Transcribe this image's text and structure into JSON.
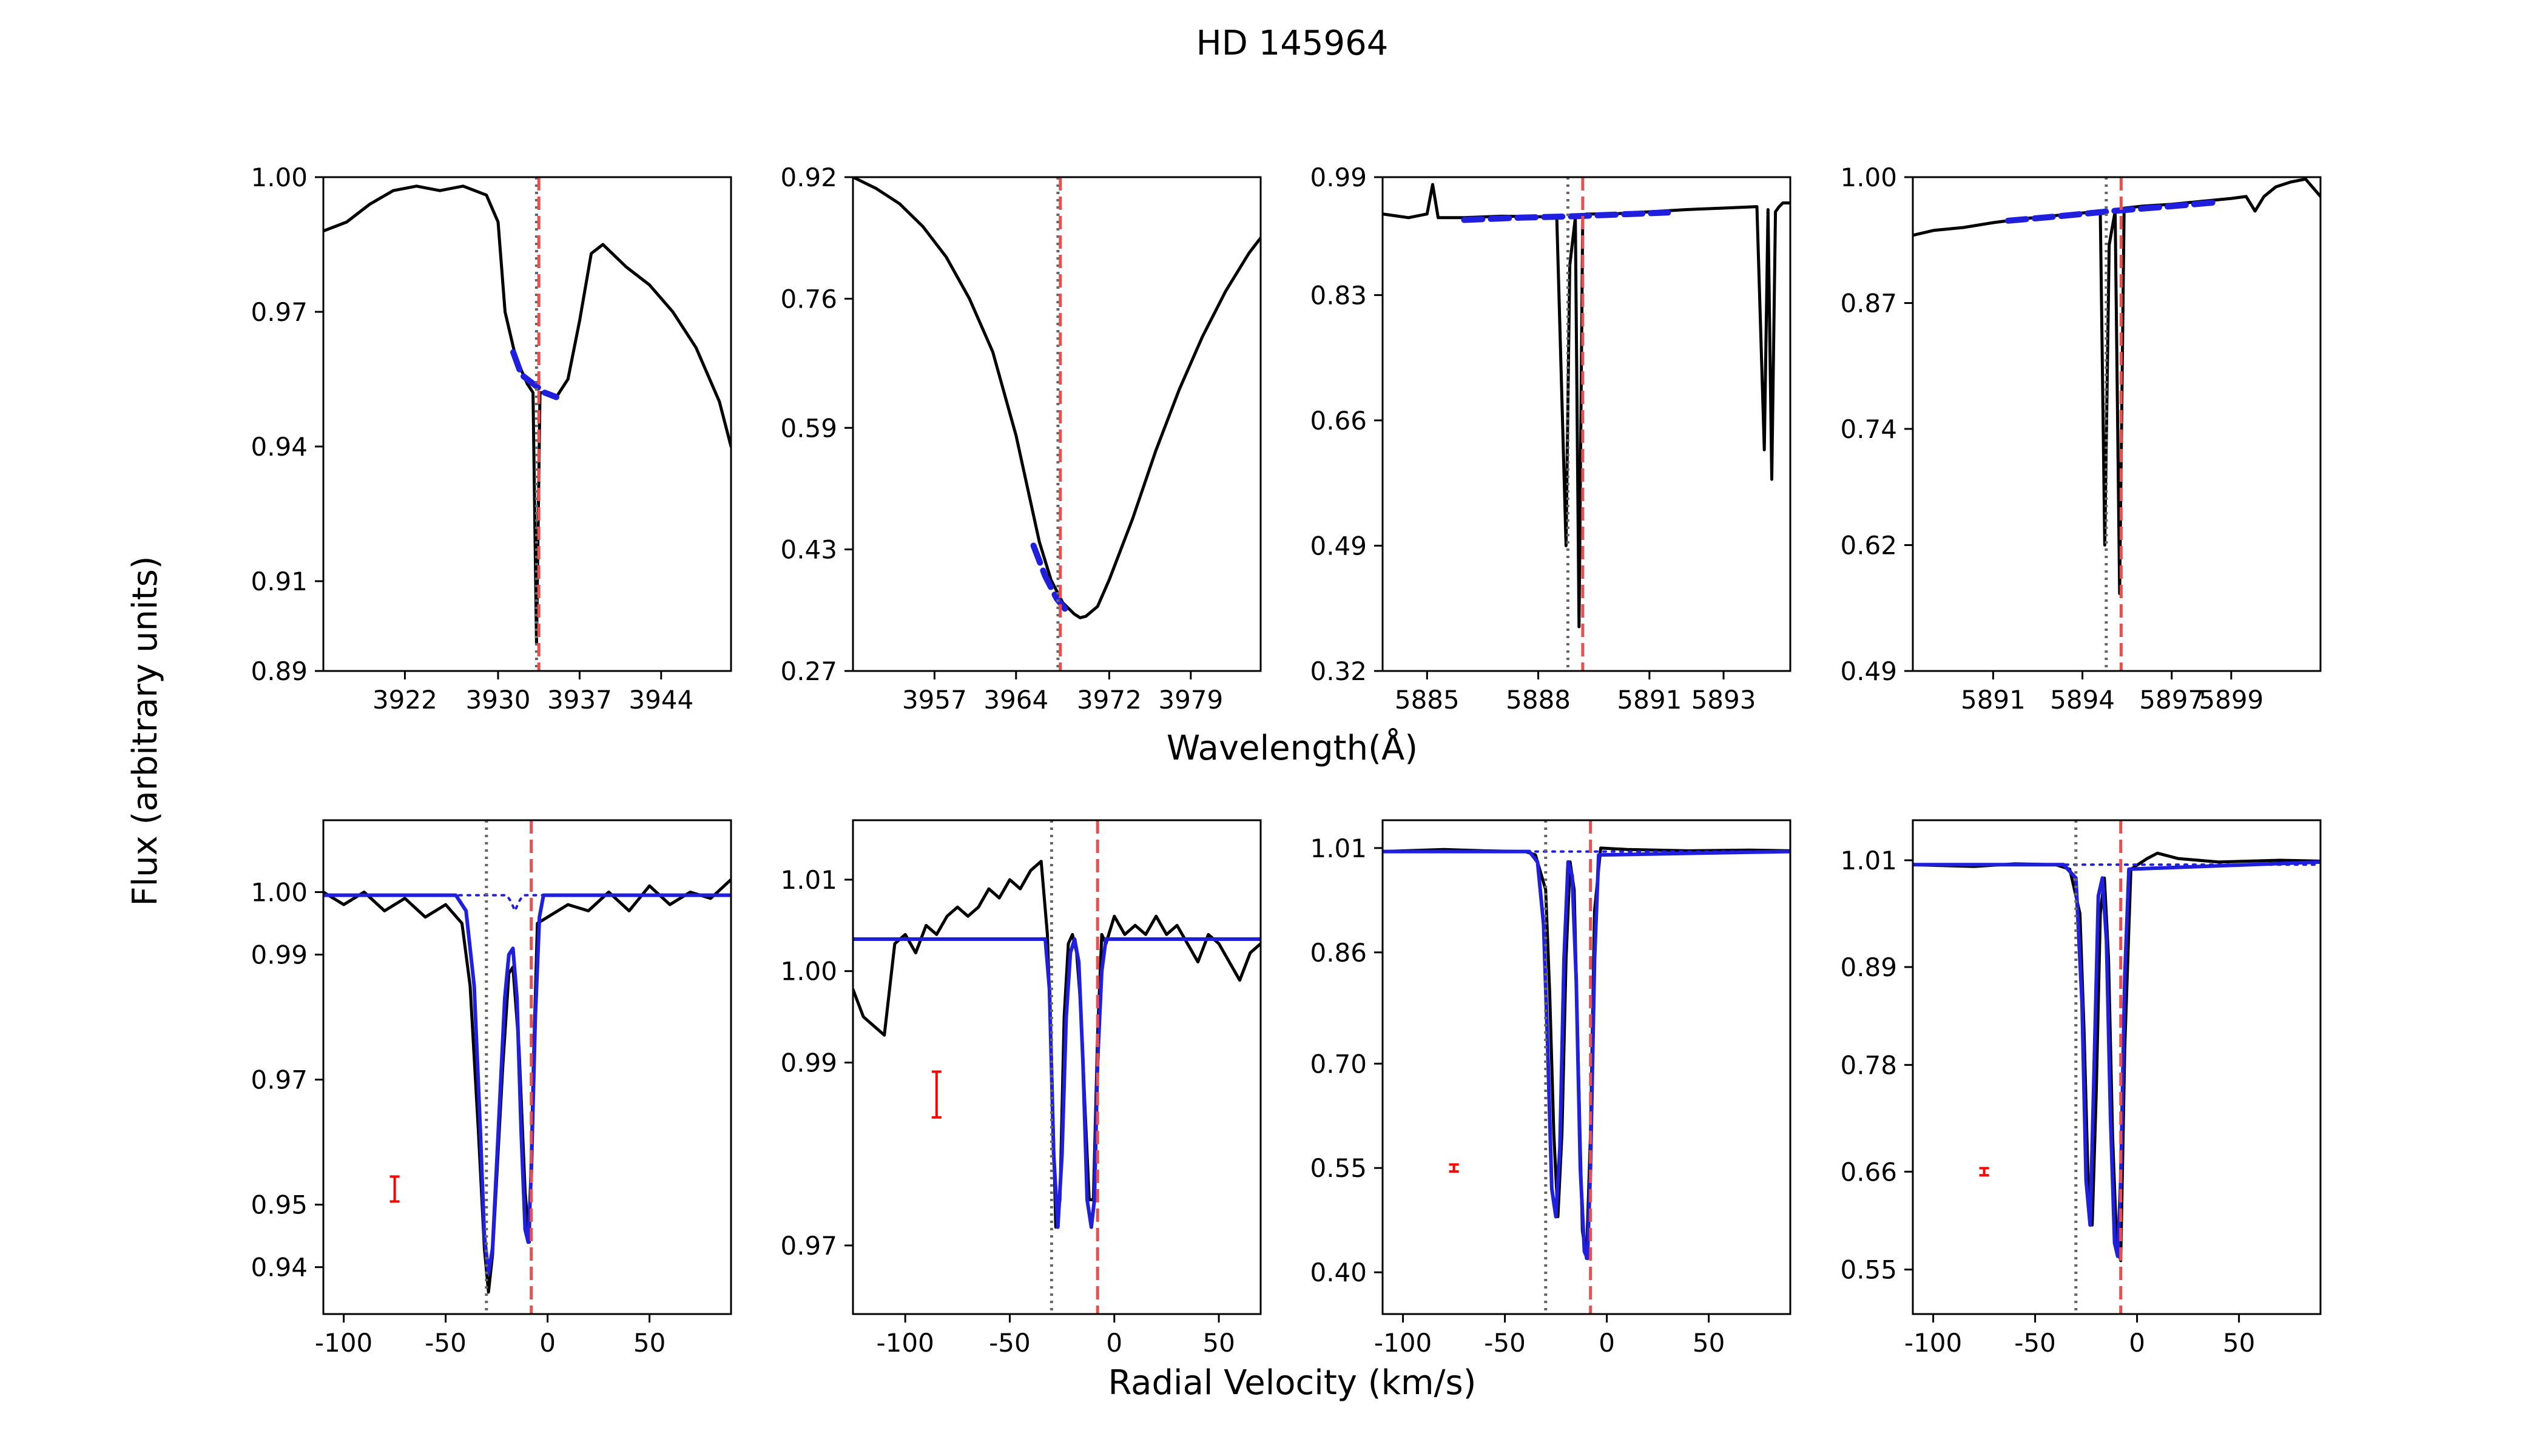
{
  "figure": {
    "title": "HD 145964",
    "ylabel": "Flux (arbitrary units)",
    "top_xlabel": "Wavelength(Å)",
    "bottom_xlabel": "Radial Velocity (km/s)"
  },
  "colors": {
    "spectrum": "#000000",
    "fit": "#1f1fdd",
    "marker_red": "#e8504f",
    "marker_gray": "#666666",
    "errorbar": "#ff0000"
  },
  "chart_data": [
    {
      "type": "line",
      "row": "top",
      "title": "",
      "xlabel": "",
      "ylabel": "",
      "xlim": [
        3915,
        3950
      ],
      "ylim": [
        0.89,
        1.0
      ],
      "xticks": [
        3922,
        3930,
        3937,
        3944
      ],
      "xtick_labels": [
        "3922",
        "3930",
        "3937",
        "3944"
      ],
      "yticks": [
        0.89,
        0.91,
        0.94,
        0.97,
        1.0
      ],
      "ytick_labels": [
        "0.89",
        "0.91",
        "0.94",
        "0.97",
        "1.00"
      ],
      "vlines": [
        {
          "x": 3933.3,
          "style": "gray-dotted"
        },
        {
          "x": 3933.5,
          "style": "red-dashed"
        }
      ],
      "spectrum": {
        "x": [
          3915,
          3917,
          3919,
          3921,
          3923,
          3925,
          3927,
          3929,
          3930,
          3930.6,
          3931.5,
          3932.5,
          3933.0,
          3933.3,
          3933.6,
          3934.0,
          3935.0,
          3936.0,
          3937.0,
          3938.0,
          3939.0,
          3941.0,
          3943.0,
          3945.0,
          3947.0,
          3949.0,
          3950
        ],
        "y": [
          0.988,
          0.99,
          0.994,
          0.997,
          0.998,
          0.997,
          0.998,
          0.996,
          0.99,
          0.97,
          0.96,
          0.954,
          0.952,
          0.896,
          0.952,
          0.952,
          0.951,
          0.955,
          0.968,
          0.983,
          0.985,
          0.98,
          0.976,
          0.97,
          0.962,
          0.95,
          0.94
        ]
      },
      "fit": {
        "x": [
          3931.3,
          3932.0,
          3933.0,
          3934.0,
          3935.0
        ],
        "y": [
          0.961,
          0.956,
          0.954,
          0.952,
          0.951
        ]
      }
    },
    {
      "type": "line",
      "row": "top",
      "title": "",
      "xlabel": "",
      "ylabel": "",
      "xlim": [
        3950,
        3985
      ],
      "ylim": [
        0.27,
        0.92
      ],
      "xticks": [
        3957,
        3964,
        3972,
        3979
      ],
      "xtick_labels": [
        "3957",
        "3964",
        "3972",
        "3979"
      ],
      "yticks": [
        0.27,
        0.43,
        0.59,
        0.76,
        0.92
      ],
      "ytick_labels": [
        "0.27",
        "0.43",
        "0.59",
        "0.76",
        "0.92"
      ],
      "vlines": [
        {
          "x": 3967.6,
          "style": "gray-dotted"
        },
        {
          "x": 3967.8,
          "style": "red-dashed"
        }
      ],
      "spectrum": {
        "x": [
          3950,
          3952,
          3954,
          3956,
          3958,
          3960,
          3962,
          3964,
          3966,
          3967,
          3968,
          3969,
          3969.5,
          3970,
          3971,
          3972,
          3974,
          3976,
          3978,
          3980,
          3982,
          3984,
          3985
        ],
        "y": [
          0.92,
          0.905,
          0.885,
          0.855,
          0.815,
          0.76,
          0.69,
          0.58,
          0.44,
          0.39,
          0.36,
          0.345,
          0.34,
          0.342,
          0.355,
          0.39,
          0.47,
          0.56,
          0.64,
          0.71,
          0.77,
          0.82,
          0.84
        ]
      },
      "fit": {
        "x": [
          3965.5,
          3966.5,
          3967.5,
          3968.2
        ],
        "y": [
          0.435,
          0.395,
          0.365,
          0.352
        ]
      }
    },
    {
      "type": "line",
      "row": "top",
      "title": "",
      "xlabel": "",
      "ylabel": "",
      "xlim": [
        5883.8,
        5894.8
      ],
      "ylim": [
        0.32,
        0.99
      ],
      "xticks": [
        5885,
        5888,
        5891,
        5893
      ],
      "xtick_labels": [
        "5885",
        "5888",
        "5891",
        "5893"
      ],
      "yticks": [
        0.32,
        0.49,
        0.66,
        0.83,
        0.99
      ],
      "ytick_labels": [
        "0.32",
        "0.49",
        "0.66",
        "0.83",
        "0.99"
      ],
      "vlines": [
        {
          "x": 5888.8,
          "style": "gray-dotted"
        },
        {
          "x": 5889.2,
          "style": "red-dashed"
        }
      ],
      "spectrum": {
        "x": [
          5883.8,
          5884.5,
          5885.0,
          5885.15,
          5885.3,
          5886.0,
          5887.0,
          5888.5,
          5888.75,
          5888.85,
          5889.0,
          5889.1,
          5889.2,
          5889.3,
          5890.0,
          5891.0,
          5892.0,
          5893.0,
          5893.9,
          5894.1,
          5894.2,
          5894.3,
          5894.4,
          5894.5,
          5894.6,
          5894.7,
          5894.8
        ],
        "y": [
          0.94,
          0.935,
          0.94,
          0.98,
          0.935,
          0.935,
          0.937,
          0.936,
          0.49,
          0.87,
          0.935,
          0.38,
          0.935,
          0.94,
          0.94,
          0.943,
          0.946,
          0.948,
          0.95,
          0.62,
          0.946,
          0.58,
          0.943,
          0.95,
          0.955,
          0.955,
          0.955
        ]
      },
      "fit": {
        "x": [
          5886.0,
          5887.5,
          5889.0,
          5890.5,
          5891.5
        ],
        "y": [
          0.932,
          0.935,
          0.937,
          0.94,
          0.942
        ]
      }
    },
    {
      "type": "line",
      "row": "top",
      "title": "",
      "xlabel": "",
      "ylabel": "",
      "xlim": [
        5888.3,
        5902
      ],
      "ylim": [
        0.49,
        1.0
      ],
      "xticks": [
        5891,
        5894,
        5897,
        5899
      ],
      "xtick_labels": [
        "5891",
        "5894",
        "5897",
        "5899"
      ],
      "yticks": [
        0.49,
        0.62,
        0.74,
        0.87,
        1.0
      ],
      "ytick_labels": [
        "0.49",
        "0.62",
        "0.74",
        "0.87",
        "1.00"
      ],
      "vlines": [
        {
          "x": 5894.8,
          "style": "gray-dotted"
        },
        {
          "x": 5895.3,
          "style": "red-dashed"
        }
      ],
      "spectrum": {
        "x": [
          5888.3,
          5889.0,
          5890.0,
          5891.0,
          5892.0,
          5893.0,
          5894.0,
          5894.6,
          5894.75,
          5894.9,
          5895.1,
          5895.25,
          5895.4,
          5896.0,
          5897.0,
          5898.0,
          5899.0,
          5899.5,
          5899.8,
          5900.1,
          5900.5,
          5901.0,
          5901.5,
          5902
        ],
        "y": [
          0.94,
          0.945,
          0.948,
          0.953,
          0.957,
          0.96,
          0.963,
          0.965,
          0.62,
          0.93,
          0.965,
          0.57,
          0.968,
          0.97,
          0.972,
          0.975,
          0.978,
          0.98,
          0.965,
          0.98,
          0.99,
          0.995,
          0.998,
          0.98
        ]
      },
      "fit": {
        "x": [
          5891.5,
          5893.0,
          5895.0,
          5897.0,
          5898.5
        ],
        "y": [
          0.955,
          0.959,
          0.965,
          0.97,
          0.974
        ]
      }
    },
    {
      "type": "line",
      "row": "bottom",
      "title": "",
      "xlabel": "",
      "ylabel": "",
      "xlim": [
        -110,
        90
      ],
      "ylim": [
        0.9325,
        1.0115
      ],
      "xticks": [
        -100,
        -50,
        0,
        50
      ],
      "xtick_labels": [
        "-100",
        "-50",
        "0",
        "50"
      ],
      "yticks": [
        0.94,
        0.95,
        0.97,
        0.99,
        1.0
      ],
      "ytick_labels": [
        "0.94",
        "0.95",
        "0.97",
        "0.99",
        "1.00"
      ],
      "vlines": [
        {
          "x": -30,
          "style": "gray-dotted"
        },
        {
          "x": -8,
          "style": "red-dashed"
        }
      ],
      "errorbar": {
        "x": -75,
        "y": 0.9525,
        "err": 0.002
      },
      "spectrum": {
        "x": [
          -110,
          -100,
          -90,
          -80,
          -70,
          -60,
          -50,
          -42,
          -38,
          -34,
          -31,
          -29,
          -27,
          -22,
          -19,
          -17,
          -14,
          -11,
          -9,
          -7,
          -5,
          0,
          10,
          20,
          30,
          40,
          50,
          60,
          70,
          80,
          90
        ],
        "y": [
          1.0,
          0.998,
          1.0,
          0.997,
          0.999,
          0.996,
          0.998,
          0.995,
          0.985,
          0.962,
          0.943,
          0.936,
          0.942,
          0.972,
          0.987,
          0.988,
          0.975,
          0.952,
          0.944,
          0.972,
          0.995,
          0.996,
          0.998,
          0.997,
          1.0,
          0.997,
          1.001,
          0.998,
          1.0,
          0.999,
          1.002
        ]
      },
      "fit": {
        "x": [
          -110,
          -45,
          -40,
          -36,
          -33,
          -31,
          -29,
          -27,
          -24,
          -21,
          -19,
          -17,
          -15,
          -13,
          -11,
          -9.5,
          -8,
          -6,
          -4,
          -2,
          90
        ],
        "y": [
          0.9995,
          0.9995,
          0.997,
          0.985,
          0.962,
          0.945,
          0.939,
          0.943,
          0.963,
          0.983,
          0.99,
          0.991,
          0.983,
          0.962,
          0.946,
          0.944,
          0.955,
          0.98,
          0.996,
          0.9995,
          0.9995
        ]
      },
      "fit_dotted": {
        "x": [
          -110,
          -20,
          -18,
          -16,
          -14,
          -12,
          90
        ],
        "y": [
          0.9995,
          0.9995,
          0.9985,
          0.997,
          0.9985,
          0.9995,
          0.9995
        ]
      }
    },
    {
      "type": "line",
      "row": "bottom",
      "title": "",
      "xlabel": "",
      "ylabel": "",
      "xlim": [
        -125,
        70
      ],
      "ylim": [
        0.9625,
        1.0165
      ],
      "xticks": [
        -100,
        -50,
        0,
        50
      ],
      "xtick_labels": [
        "-100",
        "-50",
        "0",
        "50"
      ],
      "yticks": [
        0.97,
        0.99,
        1.0,
        1.01
      ],
      "ytick_labels": [
        "0.97",
        "0.99",
        "1.00",
        "1.01"
      ],
      "vlines": [
        {
          "x": -30,
          "style": "gray-dotted"
        },
        {
          "x": -8,
          "style": "red-dashed"
        }
      ],
      "errorbar": {
        "x": -85,
        "y": 0.9865,
        "err": 0.0025
      },
      "spectrum": {
        "x": [
          -125,
          -120,
          -115,
          -110,
          -105,
          -100,
          -95,
          -90,
          -85,
          -80,
          -75,
          -70,
          -65,
          -60,
          -55,
          -50,
          -45,
          -40,
          -35,
          -32,
          -30,
          -28,
          -26,
          -24,
          -22,
          -20,
          -18,
          -16,
          -14,
          -12,
          -10,
          -8,
          -6,
          -4,
          0,
          5,
          10,
          15,
          20,
          25,
          30,
          35,
          40,
          45,
          50,
          55,
          60,
          65,
          70
        ],
        "y": [
          0.998,
          0.995,
          0.994,
          0.993,
          1.003,
          1.004,
          1.002,
          1.005,
          1.004,
          1.006,
          1.007,
          1.006,
          1.007,
          1.009,
          1.008,
          1.01,
          1.009,
          1.011,
          1.012,
          1.004,
          0.99,
          0.972,
          0.975,
          0.995,
          1.003,
          1.004,
          1.002,
          0.996,
          0.985,
          0.975,
          0.975,
          0.993,
          1.004,
          1.003,
          1.006,
          1.004,
          1.005,
          1.004,
          1.006,
          1.004,
          1.005,
          1.003,
          1.001,
          1.004,
          1.003,
          1.001,
          0.999,
          1.002,
          1.003
        ]
      },
      "fit": {
        "x": [
          -125,
          -33,
          -31,
          -29,
          -27,
          -25,
          -23,
          -21,
          -19,
          -17,
          -15,
          -13,
          -11,
          -9.5,
          -8,
          -6,
          -4,
          70
        ],
        "y": [
          1.0035,
          1.0035,
          0.998,
          0.98,
          0.972,
          0.98,
          0.995,
          1.002,
          1.0035,
          1.001,
          0.99,
          0.975,
          0.972,
          0.975,
          0.99,
          1.0,
          1.0035,
          1.0035
        ]
      }
    },
    {
      "type": "line",
      "row": "bottom",
      "title": "",
      "xlabel": "",
      "ylabel": "",
      "xlim": [
        -110,
        90
      ],
      "ylim": [
        0.34,
        1.05
      ],
      "xticks": [
        -100,
        -50,
        0,
        50
      ],
      "xtick_labels": [
        "-100",
        "-50",
        "0",
        "50"
      ],
      "yticks": [
        0.4,
        0.55,
        0.7,
        0.86,
        1.01
      ],
      "ytick_labels": [
        "0.40",
        "0.55",
        "0.70",
        "0.86",
        "1.01"
      ],
      "vlines": [
        {
          "x": -30,
          "style": "gray-dotted"
        },
        {
          "x": -8,
          "style": "red-dashed"
        }
      ],
      "errorbar": {
        "x": -75,
        "y": 0.55,
        "err": 0.005
      },
      "spectrum": {
        "x": [
          -110,
          -80,
          -60,
          -40,
          -35,
          -30,
          -28,
          -26,
          -24,
          -22,
          -20,
          -18,
          -16,
          -14,
          -12,
          -10,
          -8,
          -6,
          -3,
          10,
          40,
          70,
          90
        ],
        "y": [
          1.005,
          1.008,
          1.006,
          1.005,
          1.0,
          0.95,
          0.8,
          0.6,
          0.48,
          0.6,
          0.85,
          0.99,
          0.95,
          0.7,
          0.46,
          0.42,
          0.6,
          0.92,
          1.01,
          1.008,
          1.006,
          1.007,
          1.006
        ]
      },
      "fit": {
        "x": [
          -110,
          -38,
          -34,
          -31,
          -29,
          -27,
          -25,
          -23,
          -21,
          -19,
          -17,
          -15,
          -13,
          -11,
          -9.5,
          -8,
          -6,
          -4,
          90
        ],
        "y": [
          1.005,
          1.005,
          0.99,
          0.9,
          0.72,
          0.52,
          0.48,
          0.58,
          0.85,
          0.99,
          0.97,
          0.82,
          0.55,
          0.43,
          0.42,
          0.55,
          0.85,
          1.0,
          1.005
        ]
      },
      "fit_dotted": {
        "x": [
          -110,
          90
        ],
        "y": [
          1.005,
          1.005
        ]
      }
    },
    {
      "type": "line",
      "row": "bottom",
      "title": "",
      "xlabel": "",
      "ylabel": "",
      "xlim": [
        -110,
        90
      ],
      "ylim": [
        0.5,
        1.055
      ],
      "xticks": [
        -100,
        -50,
        0,
        50
      ],
      "xtick_labels": [
        "-100",
        "-50",
        "0",
        "50"
      ],
      "yticks": [
        0.55,
        0.66,
        0.78,
        0.89,
        1.01
      ],
      "ytick_labels": [
        "0.55",
        "0.66",
        "0.78",
        "0.89",
        "1.01"
      ],
      "vlines": [
        {
          "x": -30,
          "style": "gray-dotted"
        },
        {
          "x": -8,
          "style": "red-dashed"
        }
      ],
      "errorbar": {
        "x": -75,
        "y": 0.66,
        "err": 0.004
      },
      "spectrum": {
        "x": [
          -110,
          -80,
          -60,
          -40,
          -33,
          -28,
          -26,
          -24,
          -22,
          -20,
          -18,
          -16,
          -14,
          -12,
          -10,
          -8,
          -6,
          -3,
          5,
          10,
          20,
          40,
          70,
          90
        ],
        "y": [
          1.005,
          1.003,
          1.006,
          1.005,
          1.0,
          0.95,
          0.82,
          0.65,
          0.6,
          0.75,
          0.95,
          0.99,
          0.9,
          0.7,
          0.58,
          0.56,
          0.8,
          1.0,
          1.012,
          1.018,
          1.012,
          1.008,
          1.01,
          1.009
        ]
      },
      "fit": {
        "x": [
          -110,
          -36,
          -30,
          -27,
          -25,
          -23,
          -21,
          -19,
          -17,
          -15,
          -13,
          -11,
          -9.5,
          -8,
          -6,
          -4,
          90
        ],
        "y": [
          1.005,
          1.005,
          0.99,
          0.85,
          0.65,
          0.6,
          0.78,
          0.97,
          0.99,
          0.92,
          0.72,
          0.58,
          0.565,
          0.65,
          0.88,
          1.0,
          1.008
        ]
      },
      "fit_dotted": {
        "x": [
          -110,
          90
        ],
        "y": [
          1.005,
          1.005
        ]
      }
    }
  ]
}
